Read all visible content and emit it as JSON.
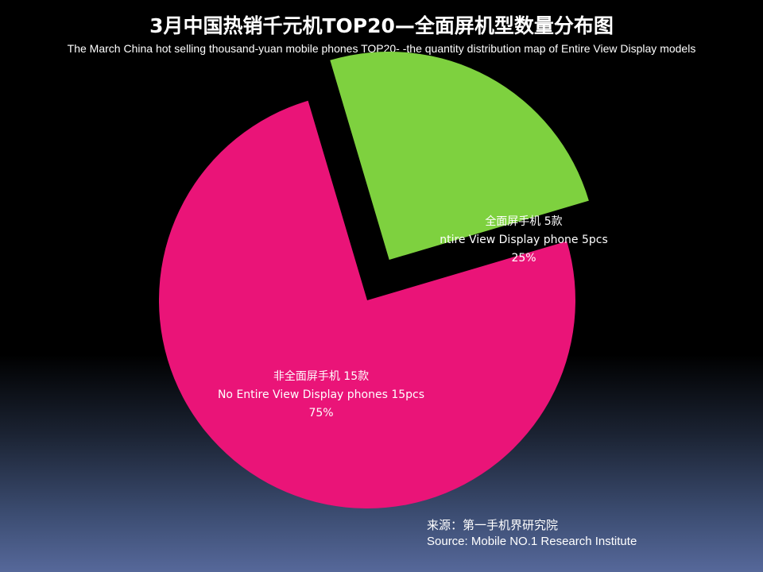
{
  "chart_data": {
    "type": "pie",
    "title": "3月中国热销千元机TOP20—全面屏机型数量分布图",
    "subtitle": "The March China hot selling thousand-yuan mobile phones TOP20- -the quantity distribution map of Entire View Display models",
    "slices": [
      {
        "name": "全面屏手机 5款",
        "name_en": "ntire View Display phone 5pcs",
        "value": 5,
        "percent_label": "25%",
        "color": "#7ed13f",
        "exploded": true
      },
      {
        "name": "非全面屏手机 15款",
        "name_en": "No Entire View Display phones 15pcs",
        "value": 15,
        "percent_label": "75%",
        "color": "#ea1478",
        "exploded": false
      }
    ],
    "legend": "none",
    "grid": false
  },
  "source": {
    "cn": "来源：第一手机界研究院",
    "en": "Source: Mobile NO.1 Research Institute"
  }
}
